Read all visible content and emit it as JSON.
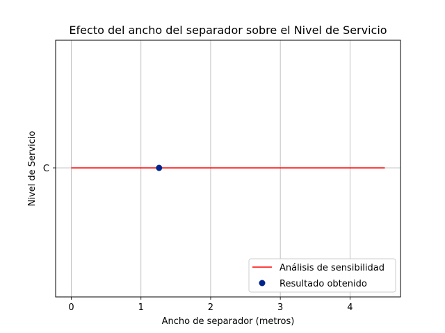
{
  "chart_data": {
    "type": "line",
    "title": "Efecto del ancho del separador sobre el Nivel de Servicio",
    "xlabel": "Ancho de separador (metros)",
    "ylabel": "Nivel de Servicio",
    "xlim": [
      -0.225,
      4.725
    ],
    "x_ticks": [
      0,
      1,
      2,
      3,
      4
    ],
    "y_categories": [
      "C"
    ],
    "grid": true,
    "legend_position": "lower-right",
    "series": [
      {
        "name": "Análisis de sensibilidad",
        "kind": "line",
        "color": "#ff0000",
        "x": [
          0,
          4.5
        ],
        "y": [
          "C",
          "C"
        ]
      },
      {
        "name": "Resultado obtenido",
        "kind": "scatter",
        "color": "#00238c",
        "x": [
          1.26
        ],
        "y": [
          "C"
        ]
      }
    ]
  }
}
